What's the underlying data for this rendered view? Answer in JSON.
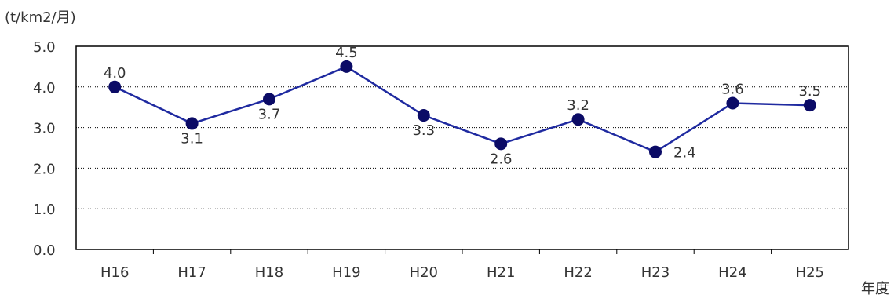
{
  "chart_data": {
    "type": "line",
    "ylabel": "(t/km2/月)",
    "xlabel": "年度",
    "categories": [
      "H16",
      "H17",
      "H18",
      "H19",
      "H20",
      "H21",
      "H22",
      "H23",
      "H24",
      "H25"
    ],
    "series": [
      {
        "values": [
          4.0,
          3.1,
          3.7,
          4.5,
          3.3,
          2.6,
          3.2,
          2.4,
          3.6,
          3.55
        ],
        "data_labels": [
          "4.0",
          "3.1",
          "3.7",
          "4.5",
          "3.3",
          "2.6",
          "3.2",
          "2.4",
          "3.6",
          "3.5"
        ],
        "label_positions": [
          "above",
          "below",
          "below",
          "above",
          "below",
          "below",
          "above",
          "right",
          "above",
          "above"
        ]
      }
    ],
    "ylim": [
      0,
      5
    ],
    "yticks": [
      "0.0",
      "1.0",
      "2.0",
      "3.0",
      "4.0",
      "5.0"
    ],
    "grid": "horizontal-dotted",
    "legend": "none",
    "colors": {
      "line": "#1f2aa0",
      "marker": "#0b0b66",
      "gridline": "#000000",
      "axis": "#000000"
    }
  }
}
